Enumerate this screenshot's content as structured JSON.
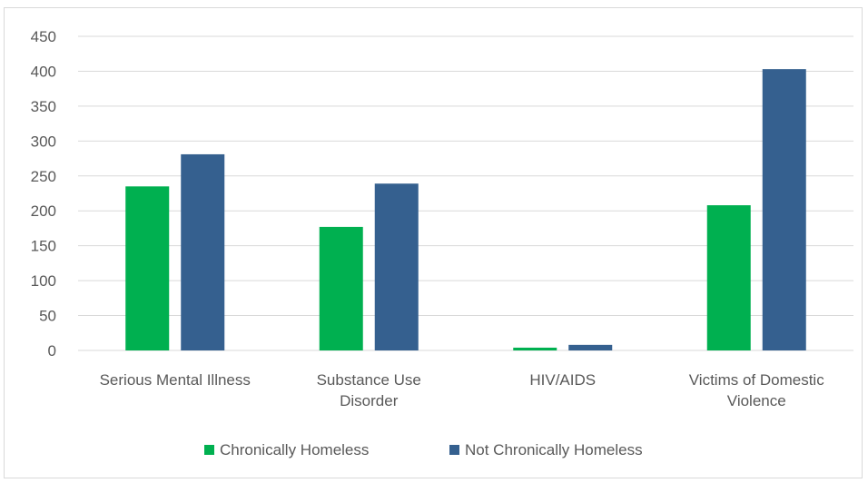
{
  "chart_data": {
    "type": "bar",
    "title": "",
    "xlabel": "",
    "ylabel": "",
    "categories": [
      [
        "Serious Mental Illness"
      ],
      [
        "Substance Use",
        "Disorder"
      ],
      [
        "HIV/AIDS"
      ],
      [
        "Victims of Domestic",
        "Violence"
      ]
    ],
    "series": [
      {
        "name": "Chronically Homeless",
        "color": "#00b050",
        "values": [
          235,
          177,
          4,
          208
        ]
      },
      {
        "name": "Not Chronically Homeless",
        "color": "#35608f",
        "values": [
          281,
          239,
          8,
          403
        ]
      }
    ],
    "ylim": [
      0,
      450
    ],
    "yticks": [
      0,
      50,
      100,
      150,
      200,
      250,
      300,
      350,
      400,
      450
    ],
    "grid": true,
    "legend_position": "bottom"
  }
}
